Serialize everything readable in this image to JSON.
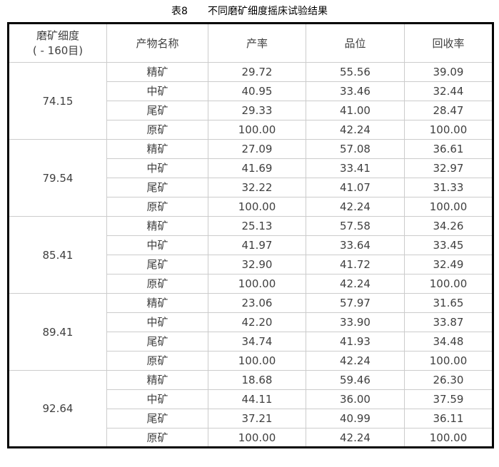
{
  "caption": {
    "label": "表8",
    "title": "不同磨矿细度摇床试验结果"
  },
  "table": {
    "headers": {
      "fineness_line1": "磨矿细度",
      "fineness_line2": "( - 160目)",
      "product": "产物名称",
      "yield": "产率",
      "grade": "品位",
      "recovery": "回收率"
    },
    "groups": [
      {
        "fineness": "74.15",
        "rows": [
          {
            "product": "精矿",
            "yield": "29.72",
            "grade": "55.56",
            "recovery": "39.09"
          },
          {
            "product": "中矿",
            "yield": "40.95",
            "grade": "33.46",
            "recovery": "32.44"
          },
          {
            "product": "尾矿",
            "yield": "29.33",
            "grade": "41.00",
            "recovery": "28.47"
          },
          {
            "product": "原矿",
            "yield": "100.00",
            "grade": "42.24",
            "recovery": "100.00"
          }
        ]
      },
      {
        "fineness": "79.54",
        "rows": [
          {
            "product": "精矿",
            "yield": "27.09",
            "grade": "57.08",
            "recovery": "36.61"
          },
          {
            "product": "中矿",
            "yield": "41.69",
            "grade": "33.41",
            "recovery": "32.97"
          },
          {
            "product": "尾矿",
            "yield": "32.22",
            "grade": "41.07",
            "recovery": "31.33"
          },
          {
            "product": "原矿",
            "yield": "100.00",
            "grade": "42.24",
            "recovery": "100.00"
          }
        ]
      },
      {
        "fineness": "85.41",
        "rows": [
          {
            "product": "精矿",
            "yield": "25.13",
            "grade": "57.58",
            "recovery": "34.26"
          },
          {
            "product": "中矿",
            "yield": "41.97",
            "grade": "33.64",
            "recovery": "33.45"
          },
          {
            "product": "尾矿",
            "yield": "32.90",
            "grade": "41.72",
            "recovery": "32.49"
          },
          {
            "product": "原矿",
            "yield": "100.00",
            "grade": "42.24",
            "recovery": "100.00"
          }
        ]
      },
      {
        "fineness": "89.41",
        "rows": [
          {
            "product": "精矿",
            "yield": "23.06",
            "grade": "57.97",
            "recovery": "31.65"
          },
          {
            "product": "中矿",
            "yield": "42.20",
            "grade": "33.90",
            "recovery": "33.87"
          },
          {
            "product": "尾矿",
            "yield": "34.74",
            "grade": "41.93",
            "recovery": "34.48"
          },
          {
            "product": "原矿",
            "yield": "100.00",
            "grade": "42.24",
            "recovery": "100.00"
          }
        ]
      },
      {
        "fineness": "92.64",
        "rows": [
          {
            "product": "精矿",
            "yield": "18.68",
            "grade": "59.46",
            "recovery": "26.30"
          },
          {
            "product": "中矿",
            "yield": "44.11",
            "grade": "36.00",
            "recovery": "37.59"
          },
          {
            "product": "尾矿",
            "yield": "37.21",
            "grade": "40.99",
            "recovery": "36.11"
          },
          {
            "product": "原矿",
            "yield": "100.00",
            "grade": "42.24",
            "recovery": "100.00"
          }
        ]
      }
    ]
  },
  "colors": {
    "background": "#ffffff",
    "outer_border": "#000000",
    "inner_border": "#cccccc",
    "cell_text": "#404040",
    "caption_text": "#000000"
  }
}
